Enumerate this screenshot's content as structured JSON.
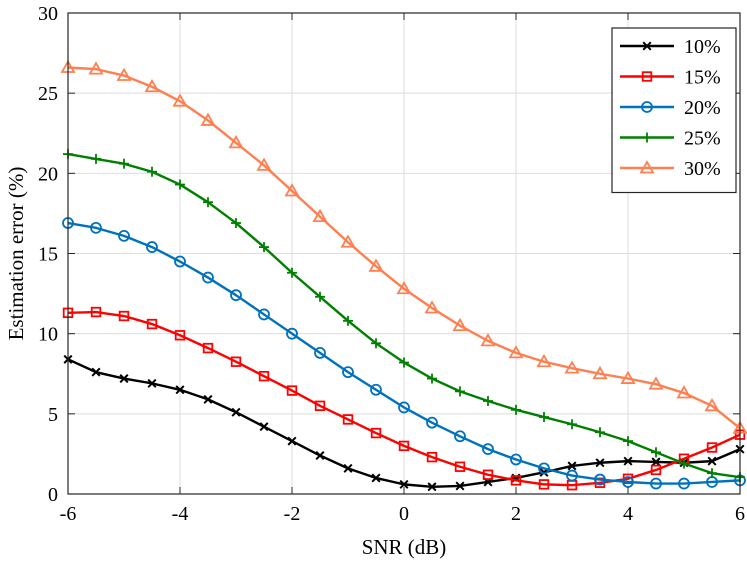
{
  "chart_data": {
    "type": "line",
    "title": "",
    "xlabel": "SNR (dB)",
    "ylabel": "Estimation error (%)",
    "xlim": [
      -6,
      6
    ],
    "ylim": [
      0,
      30
    ],
    "xticks": [
      -6,
      -4,
      -2,
      0,
      2,
      4,
      6
    ],
    "yticks": [
      0,
      5,
      10,
      15,
      20,
      25,
      30
    ],
    "grid": true,
    "legend_position": "top-right",
    "x": [
      -6,
      -5.5,
      -5,
      -4.5,
      -4,
      -3.5,
      -3,
      -2.5,
      -2,
      -1.5,
      -1,
      -0.5,
      0,
      0.5,
      1,
      1.5,
      2,
      2.5,
      3,
      3.5,
      4,
      4.5,
      5,
      5.5,
      6
    ],
    "series": [
      {
        "name": "10%",
        "color": "#000000",
        "marker": "x",
        "values": [
          8.4,
          7.6,
          7.2,
          6.9,
          6.5,
          5.9,
          5.1,
          4.2,
          3.3,
          2.4,
          1.6,
          1.0,
          0.6,
          0.45,
          0.5,
          0.75,
          1.0,
          1.35,
          1.75,
          1.95,
          2.05,
          2.0,
          1.95,
          2.05,
          2.8
        ]
      },
      {
        "name": "15%",
        "color": "#ff0000",
        "marker": "square",
        "values": [
          11.3,
          11.35,
          11.1,
          10.6,
          9.9,
          9.1,
          8.25,
          7.35,
          6.45,
          5.5,
          4.65,
          3.8,
          3.0,
          2.3,
          1.7,
          1.2,
          0.85,
          0.6,
          0.55,
          0.7,
          0.95,
          1.5,
          2.2,
          2.9,
          3.7
        ]
      },
      {
        "name": "20%",
        "color": "#0072bd",
        "marker": "circle",
        "values": [
          16.9,
          16.6,
          16.1,
          15.4,
          14.5,
          13.5,
          12.4,
          11.2,
          10.0,
          8.8,
          7.6,
          6.5,
          5.4,
          4.45,
          3.6,
          2.8,
          2.15,
          1.6,
          1.15,
          0.9,
          0.75,
          0.65,
          0.65,
          0.75,
          0.85
        ]
      },
      {
        "name": "25%",
        "color": "#008000",
        "marker": "plus",
        "values": [
          21.2,
          20.9,
          20.6,
          20.1,
          19.3,
          18.2,
          16.9,
          15.4,
          13.8,
          12.3,
          10.8,
          9.4,
          8.2,
          7.2,
          6.4,
          5.8,
          5.25,
          4.8,
          4.35,
          3.85,
          3.3,
          2.6,
          1.9,
          1.3,
          1.05
        ]
      },
      {
        "name": "30%",
        "color": "#ff7f50",
        "marker": "triangle",
        "values": [
          26.6,
          26.5,
          26.1,
          25.4,
          24.5,
          23.3,
          21.9,
          20.5,
          18.9,
          17.3,
          15.7,
          14.2,
          12.8,
          11.6,
          10.5,
          9.55,
          8.8,
          8.25,
          7.85,
          7.5,
          7.2,
          6.85,
          6.3,
          5.5,
          4.1
        ]
      }
    ]
  }
}
